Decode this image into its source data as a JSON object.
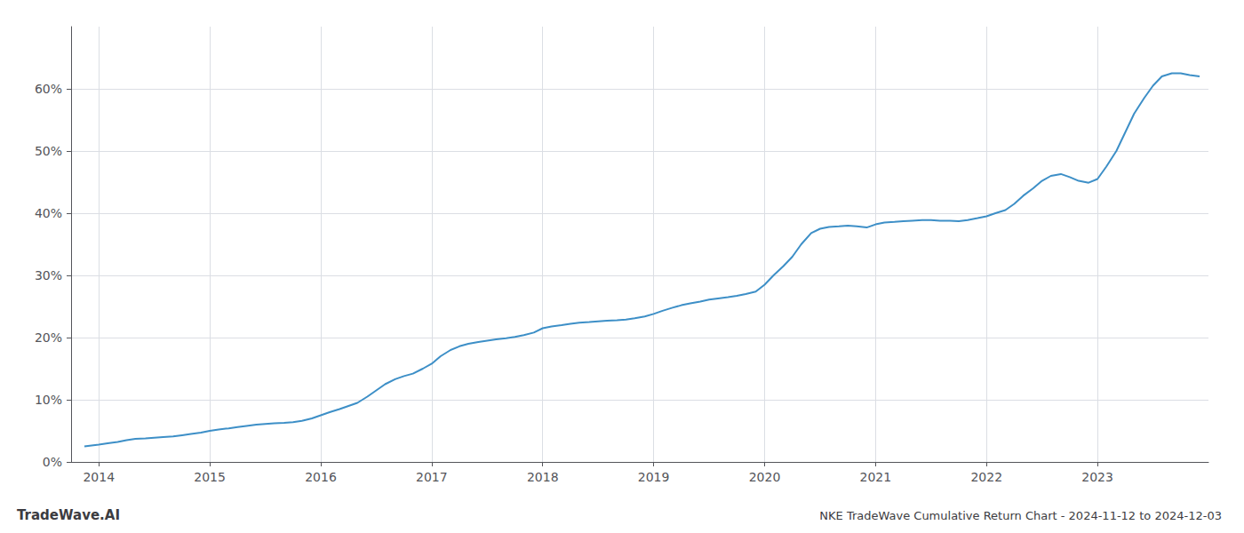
{
  "chart_data": {
    "type": "line",
    "title": "NKE TradeWave Cumulative Return Chart - 2024-11-12 to 2024-12-03",
    "annotations": [
      "TradeWave.AI"
    ],
    "color": "#3d8fc7",
    "grid": true,
    "x": [
      2013.87,
      2014.0,
      2014.08,
      2014.17,
      2014.25,
      2014.33,
      2014.42,
      2014.5,
      2014.58,
      2014.67,
      2014.75,
      2014.83,
      2014.92,
      2015.0,
      2015.08,
      2015.17,
      2015.25,
      2015.33,
      2015.42,
      2015.5,
      2015.58,
      2015.67,
      2015.75,
      2015.83,
      2015.92,
      2016.0,
      2016.08,
      2016.17,
      2016.25,
      2016.33,
      2016.42,
      2016.5,
      2016.58,
      2016.67,
      2016.75,
      2016.83,
      2016.92,
      2017.0,
      2017.08,
      2017.17,
      2017.25,
      2017.33,
      2017.42,
      2017.5,
      2017.58,
      2017.67,
      2017.75,
      2017.83,
      2017.92,
      2018.0,
      2018.08,
      2018.17,
      2018.25,
      2018.33,
      2018.42,
      2018.5,
      2018.58,
      2018.67,
      2018.75,
      2018.83,
      2018.92,
      2019.0,
      2019.08,
      2019.17,
      2019.25,
      2019.33,
      2019.42,
      2019.5,
      2019.58,
      2019.67,
      2019.75,
      2019.83,
      2019.92,
      2020.0,
      2020.08,
      2020.17,
      2020.25,
      2020.33,
      2020.42,
      2020.5,
      2020.58,
      2020.67,
      2020.75,
      2020.83,
      2020.92,
      2021.0,
      2021.08,
      2021.17,
      2021.25,
      2021.33,
      2021.42,
      2021.5,
      2021.58,
      2021.67,
      2021.75,
      2021.83,
      2021.92,
      2022.0,
      2022.08,
      2022.17,
      2022.25,
      2022.33,
      2022.42,
      2022.5,
      2022.58,
      2022.67,
      2022.75,
      2022.83,
      2022.92,
      2023.0,
      2023.08,
      2023.17,
      2023.25,
      2023.33,
      2023.42,
      2023.5,
      2023.58,
      2023.67,
      2023.75,
      2023.83,
      2023.92
    ],
    "values": [
      2.5,
      2.8,
      3.0,
      3.2,
      3.5,
      3.7,
      3.8,
      3.9,
      4.0,
      4.1,
      4.3,
      4.5,
      4.7,
      5.0,
      5.2,
      5.4,
      5.6,
      5.8,
      6.0,
      6.1,
      6.2,
      6.3,
      6.4,
      6.6,
      7.0,
      7.5,
      8.0,
      8.5,
      9.0,
      9.5,
      10.5,
      11.5,
      12.5,
      13.3,
      13.8,
      14.2,
      15.0,
      15.8,
      17.0,
      18.0,
      18.6,
      19.0,
      19.3,
      19.5,
      19.7,
      19.9,
      20.1,
      20.4,
      20.8,
      21.5,
      21.8,
      22.0,
      22.2,
      22.4,
      22.5,
      22.6,
      22.7,
      22.8,
      22.9,
      23.1,
      23.4,
      23.8,
      24.3,
      24.8,
      25.2,
      25.5,
      25.8,
      26.1,
      26.3,
      26.5,
      26.7,
      27.0,
      27.4,
      28.5,
      30.0,
      31.5,
      33.0,
      35.0,
      36.8,
      37.5,
      37.8,
      37.9,
      38.0,
      37.9,
      37.7,
      38.2,
      38.5,
      38.6,
      38.7,
      38.8,
      38.9,
      38.9,
      38.8,
      38.8,
      38.7,
      38.9,
      39.2,
      39.5,
      40.0,
      40.5,
      41.5,
      42.8,
      44.0,
      45.2,
      46.0,
      46.3,
      45.8,
      45.2,
      44.9,
      45.5,
      47.5,
      50.0,
      53.0,
      56.0,
      58.5,
      60.5,
      62.0,
      62.5,
      62.5,
      62.2,
      62.0
    ],
    "xlim": [
      2013.75,
      2024.0
    ],
    "ylim": [
      0,
      70
    ],
    "xticks": [
      2014,
      2015,
      2016,
      2017,
      2018,
      2019,
      2020,
      2021,
      2022,
      2023
    ],
    "yticks": [
      {
        "value": 0,
        "label": "0%"
      },
      {
        "value": 10,
        "label": "10%"
      },
      {
        "value": 20,
        "label": "20%"
      },
      {
        "value": 30,
        "label": "30%"
      },
      {
        "value": 40,
        "label": "40%"
      },
      {
        "value": 50,
        "label": "50%"
      },
      {
        "value": 60,
        "label": "60%"
      }
    ]
  }
}
